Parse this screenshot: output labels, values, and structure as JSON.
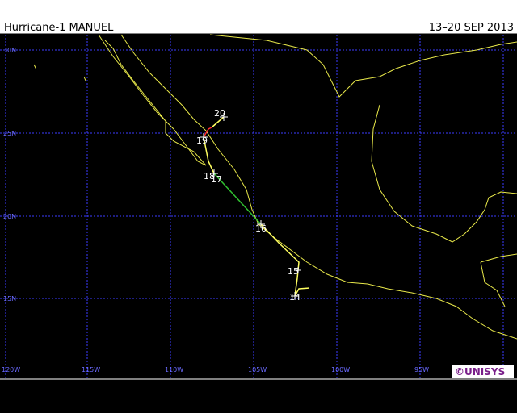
{
  "header": {
    "title": "Hurricane-1 MANUEL",
    "dates": "13–20 SEP 2013"
  },
  "latitude_labels": [
    "30N",
    "25N",
    "20N",
    "15N"
  ],
  "longitude_labels": [
    "120W",
    "115W",
    "110W",
    "105W",
    "100W",
    "95W"
  ],
  "track_labels": [
    "20",
    "19",
    "18",
    "17",
    "16",
    "15",
    "14"
  ],
  "credit": "©UNISYS"
}
